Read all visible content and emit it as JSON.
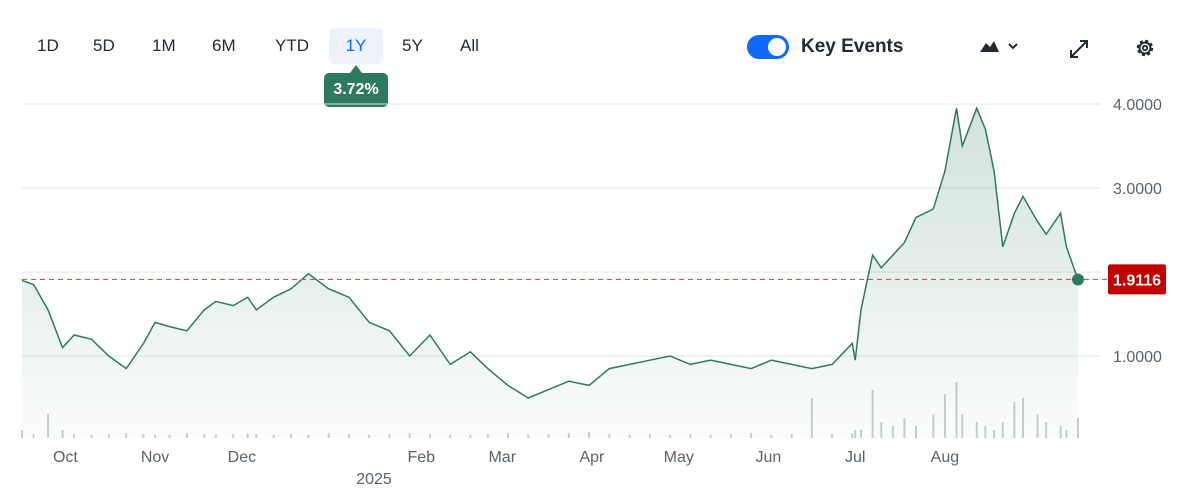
{
  "toolbar": {
    "ranges": [
      "1D",
      "5D",
      "1M",
      "6M",
      "YTD",
      "1Y",
      "5Y",
      "All"
    ],
    "active_range": "1Y",
    "change_badge": "3.72%",
    "key_events_label": "Key Events",
    "key_events_enabled": true,
    "accent_color": "#0f69ff"
  },
  "chart_data": {
    "type": "area",
    "line_color": "#2d7a5f",
    "last_price_label": "1.9116",
    "last_price": 1.9116,
    "last_price_color": "#c30000",
    "y_ticks": [
      "4.0000",
      "3.0000",
      "2.0000",
      "1.0000"
    ],
    "y_tick_values": [
      4,
      3,
      2,
      1
    ],
    "ylim": [
      0,
      4.2
    ],
    "x_ticks": [
      "Oct",
      "Nov",
      "Dec",
      "Feb",
      "Mar",
      "Apr",
      "May",
      "Jun",
      "Jul",
      "Aug"
    ],
    "year_label": "2025",
    "grid": true,
    "series": [
      {
        "x": [
          "2024-09-16",
          "2024-09-20",
          "2024-09-25",
          "2024-09-30",
          "2024-10-04",
          "2024-10-10",
          "2024-10-16",
          "2024-10-22",
          "2024-10-28",
          "2024-11-01",
          "2024-11-06",
          "2024-11-12",
          "2024-11-18",
          "2024-11-22",
          "2024-11-28",
          "2024-12-03",
          "2024-12-06",
          "2024-12-12",
          "2024-12-18",
          "2024-12-24",
          "2024-12-31",
          "2025-01-07",
          "2025-01-14",
          "2025-01-21",
          "2025-01-28",
          "2025-02-04",
          "2025-02-11",
          "2025-02-18",
          "2025-02-24",
          "2025-03-03",
          "2025-03-10",
          "2025-03-17",
          "2025-03-24",
          "2025-03-31",
          "2025-04-07",
          "2025-04-14",
          "2025-04-21",
          "2025-04-28",
          "2025-05-05",
          "2025-05-12",
          "2025-05-19",
          "2025-05-26",
          "2025-06-02",
          "2025-06-09",
          "2025-06-16",
          "2025-06-23",
          "2025-06-30",
          "2025-07-01",
          "2025-07-03",
          "2025-07-07",
          "2025-07-10",
          "2025-07-14",
          "2025-07-18",
          "2025-07-22",
          "2025-07-28",
          "2025-08-01",
          "2025-08-05",
          "2025-08-07",
          "2025-08-12",
          "2025-08-15",
          "2025-08-18",
          "2025-08-21",
          "2025-08-25",
          "2025-08-28",
          "2025-09-02",
          "2025-09-05",
          "2025-09-10",
          "2025-09-12",
          "2025-09-16"
        ],
        "y": [
          1.9,
          1.85,
          1.55,
          1.1,
          1.25,
          1.2,
          1.0,
          0.85,
          1.15,
          1.4,
          1.35,
          1.3,
          1.55,
          1.65,
          1.6,
          1.7,
          1.55,
          1.7,
          1.8,
          1.98,
          1.8,
          1.7,
          1.4,
          1.3,
          1.0,
          1.25,
          0.9,
          1.05,
          0.85,
          0.65,
          0.5,
          0.6,
          0.7,
          0.65,
          0.85,
          0.9,
          0.95,
          1.0,
          0.9,
          0.95,
          0.9,
          0.85,
          0.95,
          0.9,
          0.85,
          0.9,
          1.15,
          0.95,
          1.55,
          2.2,
          2.05,
          2.2,
          2.35,
          2.65,
          2.75,
          3.2,
          3.95,
          3.5,
          3.95,
          3.7,
          3.2,
          2.3,
          2.7,
          2.9,
          2.6,
          2.45,
          2.7,
          2.3,
          1.91
        ]
      }
    ],
    "volume": [
      0.1,
      0.05,
      0.3,
      0.1,
      0.05,
      0.04,
      0.05,
      0.06,
      0.05,
      0.04,
      0.04,
      0.06,
      0.05,
      0.04,
      0.05,
      0.06,
      0.05,
      0.04,
      0.05,
      0.04,
      0.06,
      0.05,
      0.04,
      0.05,
      0.06,
      0.05,
      0.04,
      0.04,
      0.05,
      0.06,
      0.04,
      0.05,
      0.06,
      0.08,
      0.05,
      0.04,
      0.05,
      0.04,
      0.05,
      0.04,
      0.05,
      0.06,
      0.04,
      0.05,
      0.5,
      0.05,
      0.06,
      0.1,
      0.1,
      0.6,
      0.2,
      0.15,
      0.25,
      0.15,
      0.3,
      0.55,
      0.7,
      0.3,
      0.2,
      0.15,
      0.1,
      0.2,
      0.45,
      0.5,
      0.3,
      0.2,
      0.15,
      0.1,
      0.25
    ]
  }
}
